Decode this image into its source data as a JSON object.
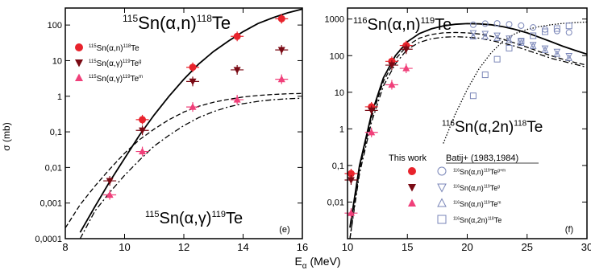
{
  "figure": {
    "xlabel": "E",
    "xlabel_sub": "α",
    "xlabel_unit": "(MeV)"
  },
  "chart_data": [
    {
      "type": "scatter",
      "panel": "e",
      "panel_label": "(e)",
      "ylabel": "σ (mb)",
      "xlim": [
        8,
        16
      ],
      "ylim": [
        0.0001,
        300
      ],
      "yscale": "log",
      "x_ticks": [
        "8",
        "10",
        "12",
        "14",
        "16"
      ],
      "y_ticks": [
        "0,0001",
        "0,001",
        "0,01",
        "0,1",
        "1",
        "10",
        "100"
      ],
      "annotations": [
        {
          "pre": "115",
          "text": "Sn(α,n)",
          "post": "118",
          "tail": "Te"
        },
        {
          "pre": "115",
          "text": "Sn(α,γ)",
          "post": "119",
          "tail": "Te"
        }
      ],
      "legend_position": "top-left",
      "series": [
        {
          "label": {
            "pre": "115",
            "text": "Sn(α,n)",
            "post": "118",
            "tail": "Te"
          },
          "marker": "circle",
          "color": "#e8232c",
          "points": [
            {
              "x": 10.6,
              "y": 0.22
            },
            {
              "x": 12.3,
              "y": 6.5
            },
            {
              "x": 13.8,
              "y": 48
            },
            {
              "x": 15.3,
              "y": 150
            }
          ]
        },
        {
          "label": {
            "pre": "115",
            "text": "Sn(α,γ)",
            "post": "119",
            "tail": "Te",
            "sup2": "g"
          },
          "marker": "triangle-down",
          "color": "#7a0a14",
          "points": [
            {
              "x": 9.5,
              "y": 0.0042
            },
            {
              "x": 10.6,
              "y": 0.11
            },
            {
              "x": 12.3,
              "y": 2.6
            },
            {
              "x": 13.8,
              "y": 5.5
            },
            {
              "x": 15.3,
              "y": 20
            }
          ]
        },
        {
          "label": {
            "pre": "115",
            "text": "Sn(α,γ)",
            "post": "119",
            "tail": "Te",
            "sup2": "m"
          },
          "marker": "triangle-up",
          "color": "#f0407a",
          "points": [
            {
              "x": 9.5,
              "y": 0.0017
            },
            {
              "x": 10.6,
              "y": 0.028
            },
            {
              "x": 12.3,
              "y": 0.5
            },
            {
              "x": 13.8,
              "y": 0.8
            },
            {
              "x": 15.3,
              "y": 3.0
            }
          ]
        }
      ],
      "curves": [
        {
          "name": "",
          "style": "solid",
          "x": [
            8.5,
            9.0,
            9.5,
            10.0,
            10.5,
            11.0,
            11.5,
            12.0,
            12.5,
            13.0,
            13.5,
            14.0,
            14.5,
            15.0,
            15.5,
            16.0
          ],
          "y": [
            0.00015,
            0.0008,
            0.004,
            0.018,
            0.08,
            0.3,
            1.0,
            3.0,
            8,
            18,
            35,
            65,
            110,
            160,
            220,
            280
          ]
        },
        {
          "name": "",
          "style": "dashed",
          "x": [
            8.0,
            8.5,
            9.0,
            9.5,
            10.0,
            10.5,
            11.0,
            11.5,
            12.0,
            12.5,
            13.0,
            13.5,
            14.0,
            14.5,
            15.0,
            15.5,
            16.0
          ],
          "y": [
            0.0002,
            0.0009,
            0.003,
            0.009,
            0.025,
            0.06,
            0.12,
            0.22,
            0.36,
            0.52,
            0.68,
            0.82,
            0.95,
            1.05,
            1.12,
            1.17,
            1.2
          ]
        },
        {
          "name": "",
          "style": "dashdot",
          "x": [
            8.5,
            9.0,
            9.5,
            10.0,
            10.5,
            11.0,
            11.5,
            12.0,
            12.5,
            13.0,
            13.5,
            14.0,
            14.5,
            15.0,
            15.5,
            16.0
          ],
          "y": [
            0.0001,
            0.0006,
            0.002,
            0.006,
            0.016,
            0.04,
            0.08,
            0.15,
            0.25,
            0.37,
            0.5,
            0.62,
            0.72,
            0.8,
            0.85,
            0.88
          ]
        }
      ]
    },
    {
      "type": "scatter",
      "panel": "f",
      "panel_label": "(f)",
      "xlim": [
        10,
        30
      ],
      "ylim": [
        0.001,
        2000
      ],
      "yscale": "log",
      "x_ticks": [
        "10",
        "15",
        "20",
        "25",
        "30"
      ],
      "y_ticks": [
        "0,01",
        "0,1",
        "1",
        "10",
        "100",
        "1000"
      ],
      "annotations": [
        {
          "pre": "116",
          "text": "Sn(α,n)",
          "post": "119",
          "tail": "Te"
        },
        {
          "pre": "116",
          "text": "Sn(α,2n)",
          "post": "118",
          "tail": "Te"
        }
      ],
      "legend_headers": [
        "This work",
        "Batij+ (1983,1984)"
      ],
      "legend_position": "bottom-right",
      "legend_entries": [
        {
          "pre": "116",
          "text": "Sn(α,n)",
          "post": "119",
          "tail": "Te",
          "sup2": "g+m"
        },
        {
          "pre": "116",
          "text": "Sn(α,n)",
          "post": "119",
          "tail": "Te",
          "sup2": "g"
        },
        {
          "pre": "116",
          "text": "Sn(α,n)",
          "post": "119",
          "tail": "Te",
          "sup2": "m"
        },
        {
          "pre": "116",
          "text": "Sn(α,2n)",
          "post": "118",
          "tail": "Te"
        }
      ],
      "series": [
        {
          "name": "This work g+m",
          "marker": "circle",
          "color": "#e8232c",
          "points": [
            {
              "x": 10.3,
              "y": 0.06
            },
            {
              "x": 12.0,
              "y": 4.0
            },
            {
              "x": 13.7,
              "y": 70
            },
            {
              "x": 14.9,
              "y": 190
            }
          ]
        },
        {
          "name": "This work g",
          "marker": "triangle-down",
          "color": "#7a0a14",
          "points": [
            {
              "x": 10.3,
              "y": 0.04
            },
            {
              "x": 12.0,
              "y": 3.2
            },
            {
              "x": 13.7,
              "y": 55
            },
            {
              "x": 14.9,
              "y": 150
            }
          ]
        },
        {
          "name": "This work m",
          "marker": "triangle-up",
          "color": "#f0407a",
          "points": [
            {
              "x": 10.3,
              "y": 0.005
            },
            {
              "x": 12.0,
              "y": 0.8
            },
            {
              "x": 13.7,
              "y": 16
            },
            {
              "x": 14.9,
              "y": 45
            }
          ]
        },
        {
          "name": "Batij g+m",
          "marker": "open-circle",
          "color": "#7a86b8",
          "points": [
            {
              "x": 20.5,
              "y": 700
            },
            {
              "x": 21.5,
              "y": 750
            },
            {
              "x": 22.5,
              "y": 760
            },
            {
              "x": 23.5,
              "y": 720
            },
            {
              "x": 24.5,
              "y": 660
            },
            {
              "x": 25.5,
              "y": 590
            },
            {
              "x": 26.5,
              "y": 520
            },
            {
              "x": 27.5,
              "y": 470
            },
            {
              "x": 28.5,
              "y": 430
            }
          ]
        },
        {
          "name": "Batij g",
          "marker": "open-triangle-down",
          "color": "#7a86b8",
          "points": [
            {
              "x": 20.5,
              "y": 420
            },
            {
              "x": 21.5,
              "y": 400
            },
            {
              "x": 22.5,
              "y": 360
            },
            {
              "x": 23.5,
              "y": 300
            },
            {
              "x": 24.5,
              "y": 250
            },
            {
              "x": 25.5,
              "y": 200
            },
            {
              "x": 26.5,
              "y": 160
            },
            {
              "x": 27.5,
              "y": 130
            },
            {
              "x": 28.5,
              "y": 100
            }
          ]
        },
        {
          "name": "Batij m",
          "marker": "open-triangle-up",
          "color": "#7a86b8",
          "points": [
            {
              "x": 20.5,
              "y": 330
            },
            {
              "x": 21.5,
              "y": 330
            },
            {
              "x": 22.5,
              "y": 300
            },
            {
              "x": 23.5,
              "y": 260
            },
            {
              "x": 24.5,
              "y": 220
            },
            {
              "x": 25.5,
              "y": 180
            },
            {
              "x": 26.5,
              "y": 140
            },
            {
              "x": 27.5,
              "y": 110
            },
            {
              "x": 28.5,
              "y": 85
            }
          ]
        },
        {
          "name": "Batij 2n",
          "marker": "open-square",
          "color": "#7a86b8",
          "points": [
            {
              "x": 20.5,
              "y": 8
            },
            {
              "x": 21.5,
              "y": 30
            },
            {
              "x": 22.5,
              "y": 80
            },
            {
              "x": 23.5,
              "y": 160
            },
            {
              "x": 24.5,
              "y": 250
            },
            {
              "x": 25.5,
              "y": 350
            },
            {
              "x": 26.5,
              "y": 450
            },
            {
              "x": 27.5,
              "y": 550
            },
            {
              "x": 28.5,
              "y": 650
            }
          ]
        }
      ],
      "curves": [
        {
          "name": "",
          "style": "solid",
          "x": [
            10.2,
            11,
            12,
            13,
            14,
            15,
            16,
            17,
            18,
            19,
            20,
            21,
            22,
            23,
            24,
            25,
            26,
            27,
            28,
            29,
            30
          ],
          "y": [
            0.002,
            0.1,
            2.5,
            25,
            100,
            240,
            400,
            540,
            650,
            720,
            750,
            740,
            700,
            620,
            520,
            420,
            320,
            240,
            180,
            140,
            110
          ]
        },
        {
          "name": "",
          "style": "dashed",
          "x": [
            10.2,
            11,
            12,
            13,
            14,
            15,
            16,
            17,
            18,
            19,
            20,
            21,
            22,
            23,
            24,
            25,
            26,
            27,
            28,
            29,
            30
          ],
          "y": [
            0.001,
            0.08,
            2.0,
            20,
            80,
            190,
            300,
            380,
            420,
            430,
            420,
            390,
            340,
            280,
            220,
            170,
            130,
            100,
            80,
            65,
            55
          ]
        },
        {
          "name": "",
          "style": "dashdot",
          "x": [
            10.2,
            11,
            12,
            13,
            14,
            15,
            16,
            17,
            18,
            19,
            20,
            21,
            22,
            23,
            24,
            25,
            26,
            27,
            28,
            29,
            30
          ],
          "y": [
            0.001,
            0.06,
            1.5,
            15,
            60,
            150,
            230,
            290,
            320,
            330,
            320,
            300,
            260,
            220,
            180,
            140,
            110,
            85,
            70,
            58,
            48
          ]
        },
        {
          "name": "",
          "style": "dotted",
          "x": [
            18,
            19,
            20,
            21,
            22,
            23,
            24,
            25,
            26,
            27,
            28,
            29,
            30
          ],
          "y": [
            0.4,
            2.5,
            12,
            45,
            120,
            250,
            400,
            520,
            620,
            700,
            760,
            800,
            830
          ]
        }
      ]
    }
  ]
}
